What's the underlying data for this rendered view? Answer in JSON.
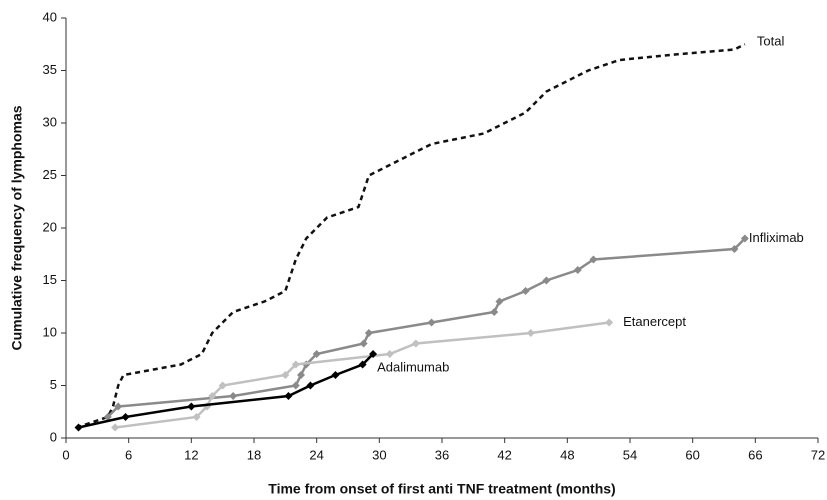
{
  "chart_data": {
    "type": "line",
    "xlabel": "Time from onset of first anti TNF treatment (months)",
    "ylabel": "Cumulative frequency of lymphomas",
    "xlim": [
      0,
      72
    ],
    "xticks": [
      0,
      6,
      12,
      18,
      24,
      30,
      36,
      42,
      48,
      54,
      60,
      66,
      72
    ],
    "ylim": [
      0,
      40
    ],
    "yticks": [
      0,
      5,
      10,
      15,
      20,
      25,
      30,
      35,
      40
    ],
    "grid": false,
    "series": [
      {
        "name": "Total",
        "color": "#111111",
        "dashed": true,
        "markers": false,
        "x": [
          1,
          4,
          4.5,
          5,
          5.5,
          11,
          13,
          14,
          16,
          19,
          21,
          22,
          23,
          25,
          28,
          29,
          31,
          35,
          40,
          42,
          44,
          46,
          50,
          53,
          58,
          64,
          65
        ],
        "values": [
          1,
          2,
          3,
          5,
          6,
          7,
          8,
          10,
          12,
          13,
          14,
          17,
          19,
          21,
          22,
          25,
          26,
          28,
          29,
          30,
          31,
          33,
          35,
          36,
          36.5,
          37,
          37.5
        ]
      },
      {
        "name": "Infliximab",
        "color": "#8a8a8a",
        "dashed": false,
        "markers": true,
        "x": [
          4,
          5,
          16,
          22,
          22.5,
          23,
          24,
          28.5,
          29,
          35,
          41,
          41.5,
          44,
          46,
          49,
          50.5,
          64,
          65
        ],
        "values": [
          2,
          3,
          4,
          5,
          6,
          7,
          8,
          9,
          10,
          11,
          12,
          13,
          14,
          15,
          16,
          17,
          18,
          19
        ]
      },
      {
        "name": "Etanercept",
        "color": "#c0c0c0",
        "dashed": false,
        "markers": true,
        "x": [
          4.7,
          12.5,
          13.5,
          14,
          15,
          21,
          22,
          31,
          33.5,
          44.5,
          52
        ],
        "values": [
          1,
          2,
          3,
          4,
          5,
          6,
          7,
          8,
          9,
          10,
          11
        ]
      },
      {
        "name": "Adalimumab",
        "color": "#000000",
        "dashed": false,
        "markers": true,
        "x": [
          1.2,
          5.7,
          12,
          21.3,
          23.4,
          25.8,
          28.4,
          29.4
        ],
        "values": [
          1,
          2,
          3,
          4,
          5,
          6,
          7,
          8
        ]
      }
    ]
  }
}
